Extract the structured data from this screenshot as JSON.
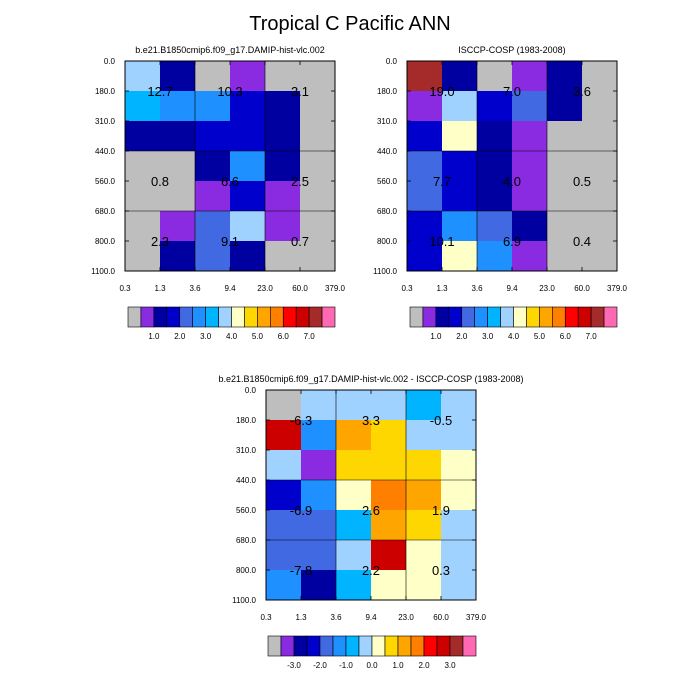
{
  "title": "Tropical C Pacific ANN",
  "chart_data": [
    {
      "type": "heatmap",
      "title": "b.e21.B1850cmip6.f09_g17.DAMIP-hist-vlc.002",
      "x_edges": [
        "0.3",
        "1.3",
        "3.6",
        "9.4",
        "23.0",
        "60.0",
        "379.0"
      ],
      "y_edges": [
        "0.0",
        "180.0",
        "310.0",
        "440.0",
        "560.0",
        "680.0",
        "800.0",
        "1100.0"
      ],
      "cell_colors": [
        [
          "#a0d2ff",
          "#0000a0",
          "#bebebe",
          "#8a2be2",
          "#bebebe",
          "#bebebe"
        ],
        [
          "#00b4ff",
          "#1e90ff",
          "#1e90ff",
          "#0000cd",
          "#0000a0",
          "#bebebe"
        ],
        [
          "#0000a0",
          "#0000a0",
          "#0000cd",
          "#0000cd",
          "#0000a0",
          "#bebebe"
        ],
        [
          "#bebebe",
          "#bebebe",
          "#0000a0",
          "#1e90ff",
          "#0000a0",
          "#bebebe"
        ],
        [
          "#bebebe",
          "#bebebe",
          "#8a2be2",
          "#0000cd",
          "#8a2be2",
          "#bebebe"
        ],
        [
          "#bebebe",
          "#8a2be2",
          "#4169e1",
          "#a0d2ff",
          "#8a2be2",
          "#bebebe"
        ],
        [
          "#bebebe",
          "#0000a0",
          "#4169e1",
          "#0000a0",
          "#bebebe",
          "#bebebe"
        ]
      ],
      "annotations": [
        {
          "text": "12.7",
          "x_bin": 0,
          "y_edge": 1
        },
        {
          "text": "10.3",
          "x_bin": 2,
          "y_edge": 1
        },
        {
          "text": "3.1",
          "x_bin": 4,
          "y_edge": 1
        },
        {
          "text": "0.8",
          "x_bin": 0,
          "y_edge": 4
        },
        {
          "text": "6.6",
          "x_bin": 2,
          "y_edge": 4
        },
        {
          "text": "2.5",
          "x_bin": 4,
          "y_edge": 4
        },
        {
          "text": "2.3",
          "x_bin": 0,
          "y_edge": 6
        },
        {
          "text": "9.1",
          "x_bin": 2,
          "y_edge": 6
        },
        {
          "text": "0.7",
          "x_bin": 4,
          "y_edge": 6
        }
      ]
    },
    {
      "type": "heatmap",
      "title": "ISCCP-COSP (1983-2008)",
      "x_edges": [
        "0.3",
        "1.3",
        "3.6",
        "9.4",
        "23.0",
        "60.0",
        "379.0"
      ],
      "y_edges": [
        "0.0",
        "180.0",
        "310.0",
        "440.0",
        "560.0",
        "680.0",
        "800.0",
        "1100.0"
      ],
      "cell_colors": [
        [
          "#a52a2a",
          "#0000a0",
          "#bebebe",
          "#8a2be2",
          "#0000a0",
          "#bebebe"
        ],
        [
          "#8a2be2",
          "#a0d2ff",
          "#0000cd",
          "#4169e1",
          "#0000a0",
          "#bebebe"
        ],
        [
          "#0000cd",
          "#ffffc8",
          "#0000a0",
          "#8a2be2",
          "#bebebe",
          "#bebebe"
        ],
        [
          "#4169e1",
          "#0000cd",
          "#0000a0",
          "#8a2be2",
          "#bebebe",
          "#bebebe"
        ],
        [
          "#4169e1",
          "#0000cd",
          "#0000a0",
          "#8a2be2",
          "#bebebe",
          "#bebebe"
        ],
        [
          "#0000cd",
          "#1e90ff",
          "#4169e1",
          "#0000a0",
          "#bebebe",
          "#bebebe"
        ],
        [
          "#0000cd",
          "#ffffc8",
          "#1e90ff",
          "#8a2be2",
          "#bebebe",
          "#bebebe"
        ]
      ],
      "annotations": [
        {
          "text": "19.0",
          "x_bin": 0,
          "y_edge": 1
        },
        {
          "text": "7.0",
          "x_bin": 2,
          "y_edge": 1
        },
        {
          "text": "3.6",
          "x_bin": 4,
          "y_edge": 1
        },
        {
          "text": "7.7",
          "x_bin": 0,
          "y_edge": 4
        },
        {
          "text": "4.0",
          "x_bin": 2,
          "y_edge": 4
        },
        {
          "text": "0.5",
          "x_bin": 4,
          "y_edge": 4
        },
        {
          "text": "10.1",
          "x_bin": 0,
          "y_edge": 6
        },
        {
          "text": "6.9",
          "x_bin": 2,
          "y_edge": 6
        },
        {
          "text": "0.4",
          "x_bin": 4,
          "y_edge": 6
        }
      ]
    },
    {
      "type": "heatmap",
      "title": "b.e21.B1850cmip6.f09_g17.DAMIP-hist-vlc.002 - ISCCP-COSP (1983-2008)",
      "x_edges": [
        "0.3",
        "1.3",
        "3.6",
        "9.4",
        "23.0",
        "60.0",
        "379.0"
      ],
      "y_edges": [
        "0.0",
        "180.0",
        "310.0",
        "440.0",
        "560.0",
        "680.0",
        "800.0",
        "1100.0"
      ],
      "cell_colors": [
        [
          "#bebebe",
          "#a0d2ff",
          "#a0d2ff",
          "#a0d2ff",
          "#00b4ff",
          "#a0d2ff"
        ],
        [
          "#cd0000",
          "#1e90ff",
          "#ffa500",
          "#ffd700",
          "#a0d2ff",
          "#a0d2ff"
        ],
        [
          "#a0d2ff",
          "#8a2be2",
          "#ffd700",
          "#ffd700",
          "#ffd700",
          "#ffffc8"
        ],
        [
          "#0000cd",
          "#1e90ff",
          "#ffffc8",
          "#ff7f00",
          "#ffa500",
          "#ffffc8"
        ],
        [
          "#4169e1",
          "#4169e1",
          "#00b4ff",
          "#ffa500",
          "#ffd700",
          "#a0d2ff"
        ],
        [
          "#4169e1",
          "#4169e1",
          "#a0d2ff",
          "#cd0000",
          "#ffffc8",
          "#a0d2ff"
        ],
        [
          "#1e90ff",
          "#0000a0",
          "#00b4ff",
          "#ffffc8",
          "#ffffc8",
          "#a0d2ff"
        ]
      ],
      "annotations": [
        {
          "text": "-6.3",
          "x_bin": 0,
          "y_edge": 1
        },
        {
          "text": "3.3",
          "x_bin": 2,
          "y_edge": 1
        },
        {
          "text": "-0.5",
          "x_bin": 4,
          "y_edge": 1
        },
        {
          "text": "-6.9",
          "x_bin": 0,
          "y_edge": 4
        },
        {
          "text": "2.6",
          "x_bin": 2,
          "y_edge": 4
        },
        {
          "text": "1.9",
          "x_bin": 4,
          "y_edge": 4
        },
        {
          "text": "-7.8",
          "x_bin": 0,
          "y_edge": 6
        },
        {
          "text": "2.2",
          "x_bin": 2,
          "y_edge": 6
        },
        {
          "text": "0.3",
          "x_bin": 4,
          "y_edge": 6
        }
      ]
    }
  ],
  "colorbars": [
    {
      "colors": [
        "#bebebe",
        "#8a2be2",
        "#0000a0",
        "#0000cd",
        "#4169e1",
        "#1e90ff",
        "#00b4ff",
        "#a0d2ff",
        "#ffffc8",
        "#ffd700",
        "#ffa500",
        "#ff7f00",
        "#ff0000",
        "#cd0000",
        "#a52a2a",
        "#ff69b4"
      ],
      "labels": [
        {
          "text": "1.0",
          "boundary": 2
        },
        {
          "text": "2.0",
          "boundary": 4
        },
        {
          "text": "3.0",
          "boundary": 6
        },
        {
          "text": "4.0",
          "boundary": 8
        },
        {
          "text": "5.0",
          "boundary": 10
        },
        {
          "text": "6.0",
          "boundary": 12
        },
        {
          "text": "7.0",
          "boundary": 14
        }
      ]
    },
    {
      "colors": [
        "#bebebe",
        "#8a2be2",
        "#0000a0",
        "#0000cd",
        "#4169e1",
        "#1e90ff",
        "#00b4ff",
        "#a0d2ff",
        "#ffffc8",
        "#ffd700",
        "#ffa500",
        "#ff7f00",
        "#ff0000",
        "#cd0000",
        "#a52a2a",
        "#ff69b4"
      ],
      "labels": [
        {
          "text": "1.0",
          "boundary": 2
        },
        {
          "text": "2.0",
          "boundary": 4
        },
        {
          "text": "3.0",
          "boundary": 6
        },
        {
          "text": "4.0",
          "boundary": 8
        },
        {
          "text": "5.0",
          "boundary": 10
        },
        {
          "text": "6.0",
          "boundary": 12
        },
        {
          "text": "7.0",
          "boundary": 14
        }
      ]
    },
    {
      "colors": [
        "#bebebe",
        "#8a2be2",
        "#0000a0",
        "#0000cd",
        "#4169e1",
        "#1e90ff",
        "#00b4ff",
        "#a0d2ff",
        "#ffffc8",
        "#ffd700",
        "#ffa500",
        "#ff7f00",
        "#ff0000",
        "#cd0000",
        "#a52a2a",
        "#ff69b4"
      ],
      "labels": [
        {
          "text": "-3.0",
          "boundary": 2
        },
        {
          "text": "-2.0",
          "boundary": 4
        },
        {
          "text": "-1.0",
          "boundary": 6
        },
        {
          "text": "0.0",
          "boundary": 8
        },
        {
          "text": "1.0",
          "boundary": 10
        },
        {
          "text": "2.0",
          "boundary": 12
        },
        {
          "text": "3.0",
          "boundary": 14
        }
      ]
    }
  ]
}
